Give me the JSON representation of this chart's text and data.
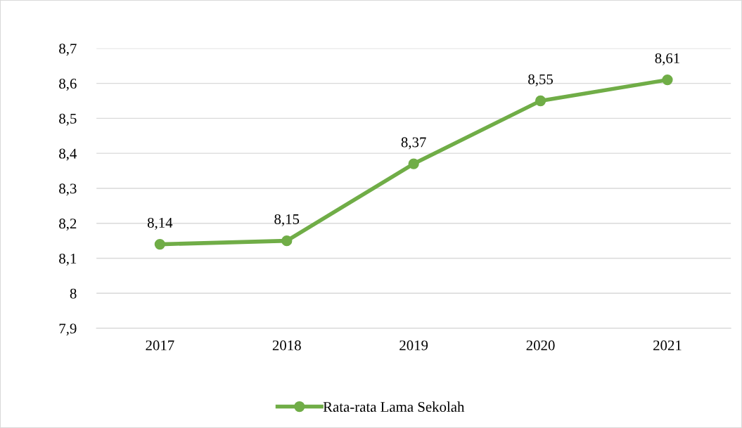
{
  "chart_data": {
    "type": "line",
    "categories": [
      "2017",
      "2018",
      "2019",
      "2020",
      "2021"
    ],
    "series": [
      {
        "name": "Rata-rata Lama Sekolah",
        "color": "#70ad47",
        "values": [
          8.14,
          8.15,
          8.37,
          8.55,
          8.61
        ],
        "value_labels": [
          "8,14",
          "8,15",
          "8,37",
          "8,55",
          "8,61"
        ]
      }
    ],
    "ylim": [
      7.9,
      8.7
    ],
    "yticks": [
      {
        "value": 7.9,
        "label": "7,9"
      },
      8,
      {
        "value": 8.1,
        "label": "8,1"
      },
      {
        "value": 8.2,
        "label": "8,2"
      },
      {
        "value": 8.3,
        "label": "8,3"
      },
      {
        "value": 8.4,
        "label": "8,4"
      },
      {
        "value": 8.5,
        "label": "8,5"
      },
      {
        "value": 8.6,
        "label": "8,6"
      },
      {
        "value": 8.7,
        "label": "8,7"
      }
    ],
    "grid": "y",
    "legend": "bottom",
    "marker": "circle",
    "line_style": "solid"
  }
}
